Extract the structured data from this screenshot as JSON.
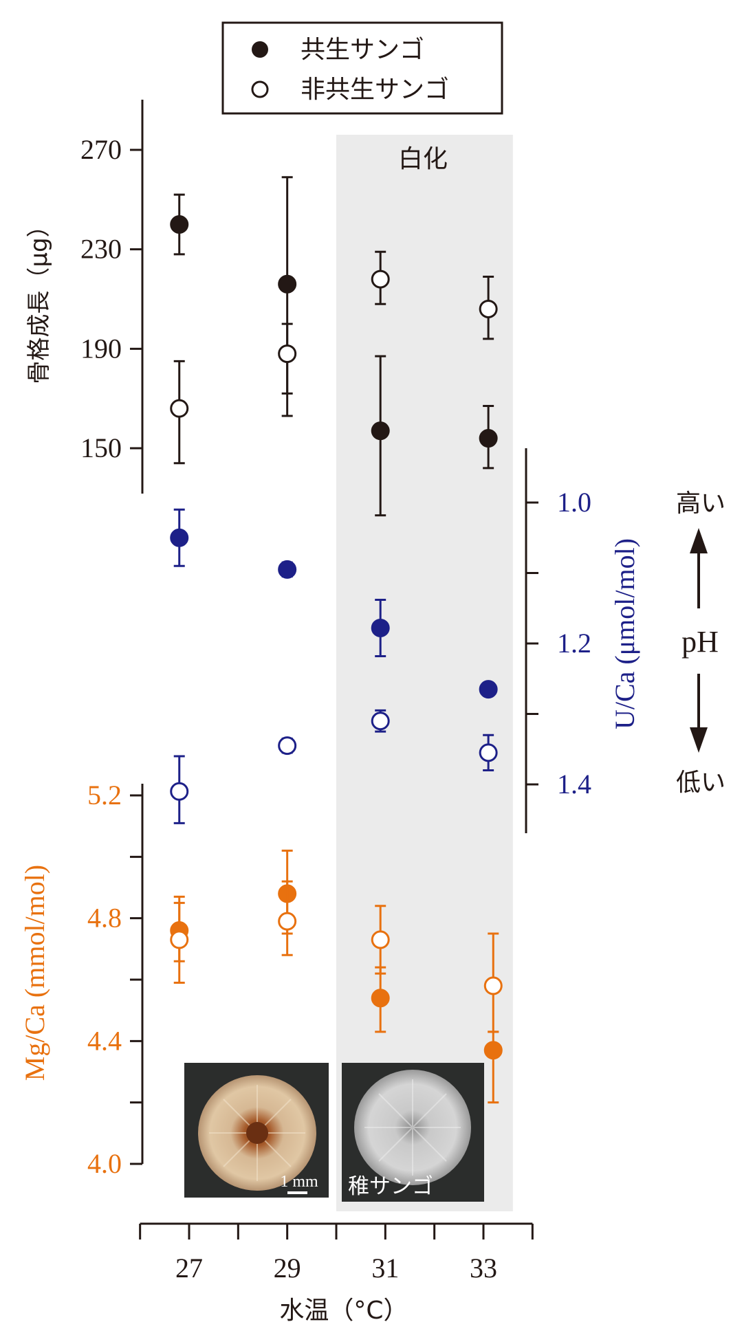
{
  "legend": {
    "items": [
      {
        "label": "共生サンゴ",
        "marker": "filled"
      },
      {
        "label": "非共生サンゴ",
        "marker": "open"
      }
    ]
  },
  "shaded_region": {
    "label": "白化",
    "x_range": [
      30.0,
      33.6
    ]
  },
  "photo_labels": {
    "scale": "1 mm",
    "juvenile": "稚サンゴ"
  },
  "ph_indicator": {
    "high": "高い",
    "label": "pH",
    "low": "低い"
  },
  "colors": {
    "growth": "#231815",
    "uca": "#1d2088",
    "mgca": "#e8710f",
    "shade": "#ebebeb",
    "photo_bg": "#2b2d2c"
  },
  "chart_data": [
    {
      "type": "scatter",
      "xlabel": "水温（°C）",
      "x_ticks": [
        27,
        29,
        31,
        33
      ],
      "xlim": [
        26.0,
        34.0
      ],
      "ylabel": "骨格成長（μg）",
      "y_ticks": [
        150,
        190,
        230,
        270
      ],
      "ylim": [
        131,
        291
      ],
      "series": [
        {
          "name": "共生サンゴ",
          "marker": "filled",
          "x": [
            26.8,
            29.0,
            30.9,
            33.1
          ],
          "y": [
            240,
            216,
            157,
            154
          ],
          "err_low": [
            228,
            163,
            123,
            142
          ],
          "err_high": [
            252,
            259,
            187,
            167
          ]
        },
        {
          "name": "非共生サンゴ",
          "marker": "open",
          "x": [
            26.8,
            29.0,
            30.9,
            33.1
          ],
          "y": [
            166,
            188,
            218,
            206
          ],
          "err_low": [
            144,
            172,
            208,
            194
          ],
          "err_high": [
            185,
            200,
            229,
            219
          ]
        }
      ]
    },
    {
      "type": "scatter",
      "ylabel": "U/Ca (μmol/mol)",
      "y_ticks": [
        1.0,
        1.2,
        1.4
      ],
      "y_minor_ticks": [
        1.1,
        1.3
      ],
      "ylim": [
        0.93,
        1.47
      ],
      "y_inverted": true,
      "series": [
        {
          "name": "共生サンゴ",
          "marker": "filled",
          "x": [
            26.8,
            29.0,
            30.9,
            33.1
          ],
          "y": [
            1.05,
            1.095,
            1.178,
            1.265
          ],
          "err_low": [
            1.01,
            1.085,
            1.138,
            1.258
          ],
          "err_high": [
            1.09,
            1.105,
            1.218,
            1.272
          ]
        },
        {
          "name": "非共生サンゴ",
          "marker": "open",
          "x": [
            26.8,
            29.0,
            30.9,
            33.1
          ],
          "y": [
            1.41,
            1.345,
            1.31,
            1.355
          ],
          "err_low": [
            1.36,
            1.335,
            1.295,
            1.33
          ],
          "err_high": [
            1.455,
            1.355,
            1.325,
            1.38
          ]
        }
      ]
    },
    {
      "type": "scatter",
      "ylabel": "Mg/Ca (mmol/mol)",
      "y_ticks": [
        4.0,
        4.4,
        4.8,
        5.2
      ],
      "y_minor_ticks": [
        4.2,
        4.6,
        5.0
      ],
      "ylim": [
        4.0,
        5.2
      ],
      "series": [
        {
          "name": "共生サンゴ",
          "marker": "filled",
          "x": [
            26.8,
            29.0,
            30.9,
            33.2
          ],
          "y": [
            4.76,
            4.88,
            4.54,
            4.37
          ],
          "err_low": [
            4.66,
            4.75,
            4.43,
            4.2
          ],
          "err_high": [
            4.87,
            5.02,
            4.64,
            4.43
          ]
        },
        {
          "name": "非共生サンゴ",
          "marker": "open",
          "x": [
            26.8,
            29.0,
            30.9,
            33.2
          ],
          "y": [
            4.73,
            4.79,
            4.73,
            4.58
          ],
          "err_low": [
            4.59,
            4.68,
            4.62,
            4.43
          ],
          "err_high": [
            4.85,
            4.92,
            4.84,
            4.75
          ]
        }
      ]
    }
  ]
}
